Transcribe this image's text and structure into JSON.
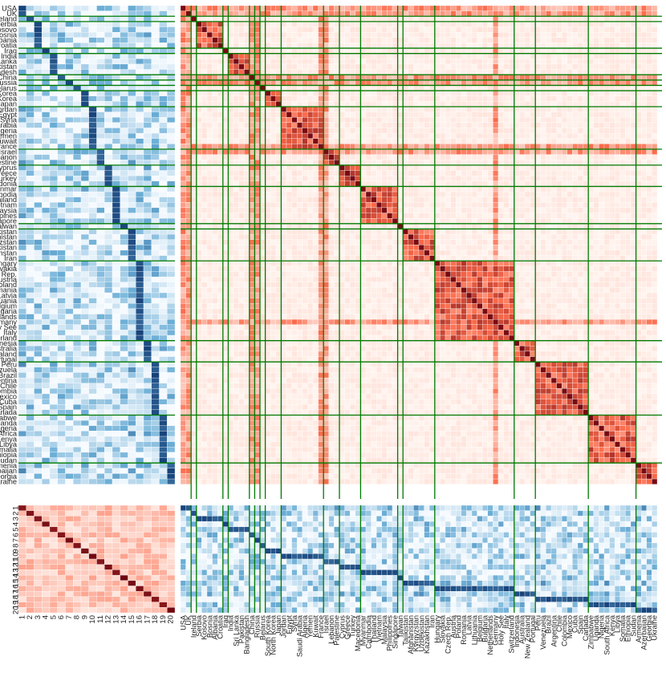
{
  "chart_data": {
    "type": "heatmap",
    "title": "",
    "layout": "2x2 block matrix of heatmaps: country-topic loadings (blue, top-left), country-country similarity (red, top-right), topic-topic similarity (red, bottom-left), topic-country loadings (blue, bottom-right)",
    "countries": [
      "USA",
      "UK",
      "Ireland",
      "Serbia",
      "Kosovo",
      "Bosnia",
      "Albania",
      "Croatia",
      "Iraq",
      "India",
      "Sri Lanka",
      "Pakistan",
      "Bangladesh",
      "China",
      "Russia",
      "Belarus",
      "South Korea",
      "North Korea",
      "Japan",
      "Jordan",
      "Egypt",
      "Syria",
      "Saudi Arabia",
      "Algeria",
      "Yemen",
      "Kuwait",
      "France",
      "Israel",
      "Lebanon",
      "Palestine",
      "Cyprus",
      "Greece",
      "Turkey",
      "Macedonia",
      "Myanmar",
      "Cambodia",
      "Thailand",
      "Vietnam",
      "Malaysia",
      "Philippines",
      "Singapore",
      "Taiwan",
      "Tajikistan",
      "Afghanistan",
      "Kyrgyzstan",
      "Uzbekistan",
      "Kazakhstan",
      "Iran",
      "Hungary",
      "Slovakia",
      "Czech Rep.",
      "Austria",
      "Poland",
      "Romania",
      "Latvia",
      "Lithuania",
      "Belgium",
      "Bulgaria",
      "Netherlands",
      "Germany",
      "Holy See",
      "Italy",
      "Switzerland",
      "Indonesia",
      "Australia",
      "New Zealand",
      "Portugal",
      "Peru",
      "Venezuela",
      "Brazil",
      "Argentina",
      "Chile",
      "Colombia",
      "Mexico",
      "Cuba",
      "Spain",
      "Canada",
      "Zimbabwe",
      "Uganda",
      "Nigeria",
      "South Africa",
      "Kenya",
      "Libya",
      "Somalia",
      "Ethiopia",
      "Sudan",
      "Armenia",
      "Azerbaijan",
      "Georgia",
      "Ukraine"
    ],
    "topics": [
      "1",
      "2",
      "3",
      "4",
      "5",
      "6",
      "7",
      "8",
      "9",
      "10",
      "11",
      "12",
      "13",
      "14",
      "15",
      "16",
      "17",
      "18",
      "19",
      "20"
    ],
    "country_groups": [
      [
        "USA",
        "UK"
      ],
      [
        "Ireland"
      ],
      [
        "Serbia",
        "Kosovo",
        "Bosnia",
        "Albania",
        "Croatia"
      ],
      [
        "Iraq"
      ],
      [
        "India",
        "Sri Lanka",
        "Pakistan",
        "Bangladesh"
      ],
      [
        "China"
      ],
      [
        "Russia"
      ],
      [
        "Belarus"
      ],
      [
        "South Korea",
        "North Korea",
        "Japan"
      ],
      [
        "Jordan",
        "Egypt",
        "Syria",
        "Saudi Arabia",
        "Algeria",
        "Yemen",
        "Kuwait",
        "France"
      ],
      [
        "Israel",
        "Lebanon",
        "Palestine"
      ],
      [
        "Cyprus",
        "Greece",
        "Turkey",
        "Macedonia"
      ],
      [
        "Myanmar",
        "Cambodia",
        "Thailand",
        "Vietnam",
        "Malaysia",
        "Philippines",
        "Singapore"
      ],
      [
        "Taiwan"
      ],
      [
        "Tajikistan",
        "Afghanistan",
        "Kyrgyzstan",
        "Uzbekistan",
        "Kazakhstan",
        "Iran"
      ],
      [
        "Hungary",
        "Slovakia",
        "Czech Rep.",
        "Austria",
        "Poland",
        "Romania",
        "Latvia",
        "Lithuania",
        "Belgium",
        "Bulgaria",
        "Netherlands",
        "Germany",
        "Holy See",
        "Italy",
        "Switzerland"
      ],
      [
        "Indonesia",
        "Australia",
        "New Zealand",
        "Portugal"
      ],
      [
        "Peru",
        "Venezuela",
        "Brazil",
        "Argentina",
        "Chile",
        "Colombia",
        "Mexico",
        "Cuba",
        "Spain",
        "Canada"
      ],
      [
        "Zimbabwe",
        "Uganda",
        "Nigeria",
        "South Africa",
        "Kenya",
        "Libya",
        "Somalia",
        "Ethiopia",
        "Sudan"
      ],
      [
        "Armenia",
        "Azerbaijan",
        "Georgia",
        "Ukraine"
      ]
    ],
    "country_topic_assignment": [
      1,
      1,
      2,
      3,
      3,
      3,
      3,
      3,
      4,
      5,
      5,
      5,
      5,
      6,
      7,
      8,
      9,
      9,
      9,
      10,
      10,
      10,
      10,
      10,
      10,
      10,
      10,
      11,
      11,
      11,
      12,
      12,
      12,
      12,
      13,
      13,
      13,
      13,
      13,
      13,
      13,
      14,
      15,
      15,
      15,
      15,
      15,
      15,
      16,
      16,
      16,
      16,
      16,
      16,
      16,
      16,
      16,
      16,
      16,
      16,
      16,
      16,
      16,
      17,
      17,
      17,
      17,
      18,
      18,
      18,
      18,
      18,
      18,
      18,
      18,
      18,
      18,
      19,
      19,
      19,
      19,
      19,
      19,
      19,
      19,
      19,
      20,
      20,
      20,
      20
    ],
    "value_scale": "relative intensity 0-1 estimated from color saturation",
    "hub_countries": [
      "USA",
      "UK",
      "Russia",
      "China",
      "France",
      "Israel",
      "Germany"
    ],
    "colors": {
      "blue_low": "#f7fbff",
      "blue_high": "#08306b",
      "red_low": "#fff5f0",
      "red_high": "#67000d",
      "group_line": "#007a00",
      "grid": "#ffffff"
    }
  }
}
